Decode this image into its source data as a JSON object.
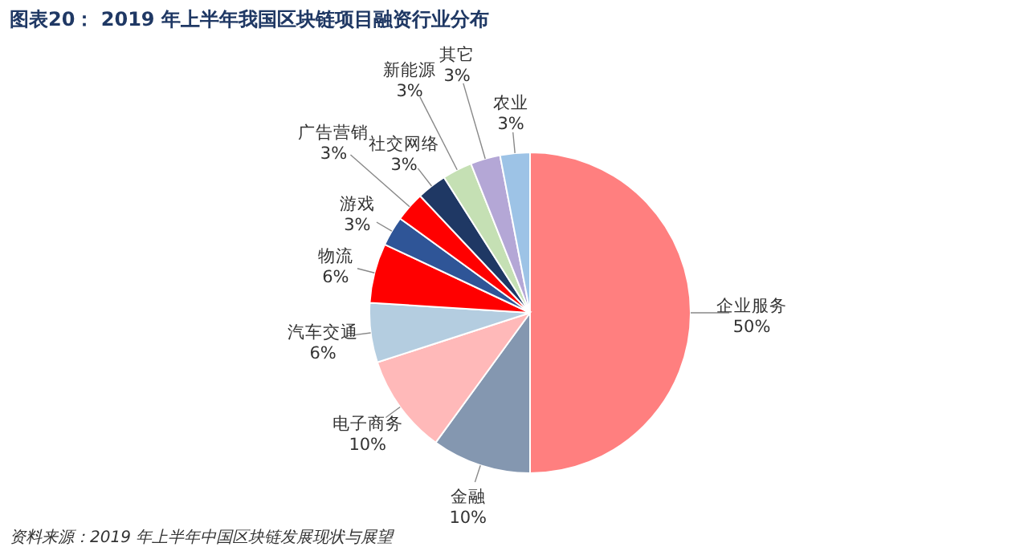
{
  "chart_data": {
    "type": "pie",
    "title": "图表20：  2019 年上半年我国区块链项目融资行业分布",
    "categories": [
      "企业服务",
      "金融",
      "电子商务",
      "汽车交通",
      "物流",
      "游戏",
      "广告营销",
      "社交网络",
      "新能源",
      "其它",
      "农业"
    ],
    "values": [
      50,
      10,
      10,
      6,
      6,
      3,
      3,
      3,
      3,
      3,
      3
    ],
    "colors": [
      "#ff7f7f",
      "#8497b0",
      "#ffb9b9",
      "#b4cde0",
      "#ff0000",
      "#2f5597",
      "#ff0000",
      "#1f3864",
      "#c5e0b4",
      "#b4a7d6",
      "#9dc3e6"
    ],
    "value_labels": [
      "50%",
      "10%",
      "10%",
      "6%",
      "6%",
      "3%",
      "3%",
      "3%",
      "3%",
      "3%",
      "3%"
    ],
    "annotations": [
      "资料来源：2019 年上半年中国区块链发展现状与展望"
    ]
  }
}
